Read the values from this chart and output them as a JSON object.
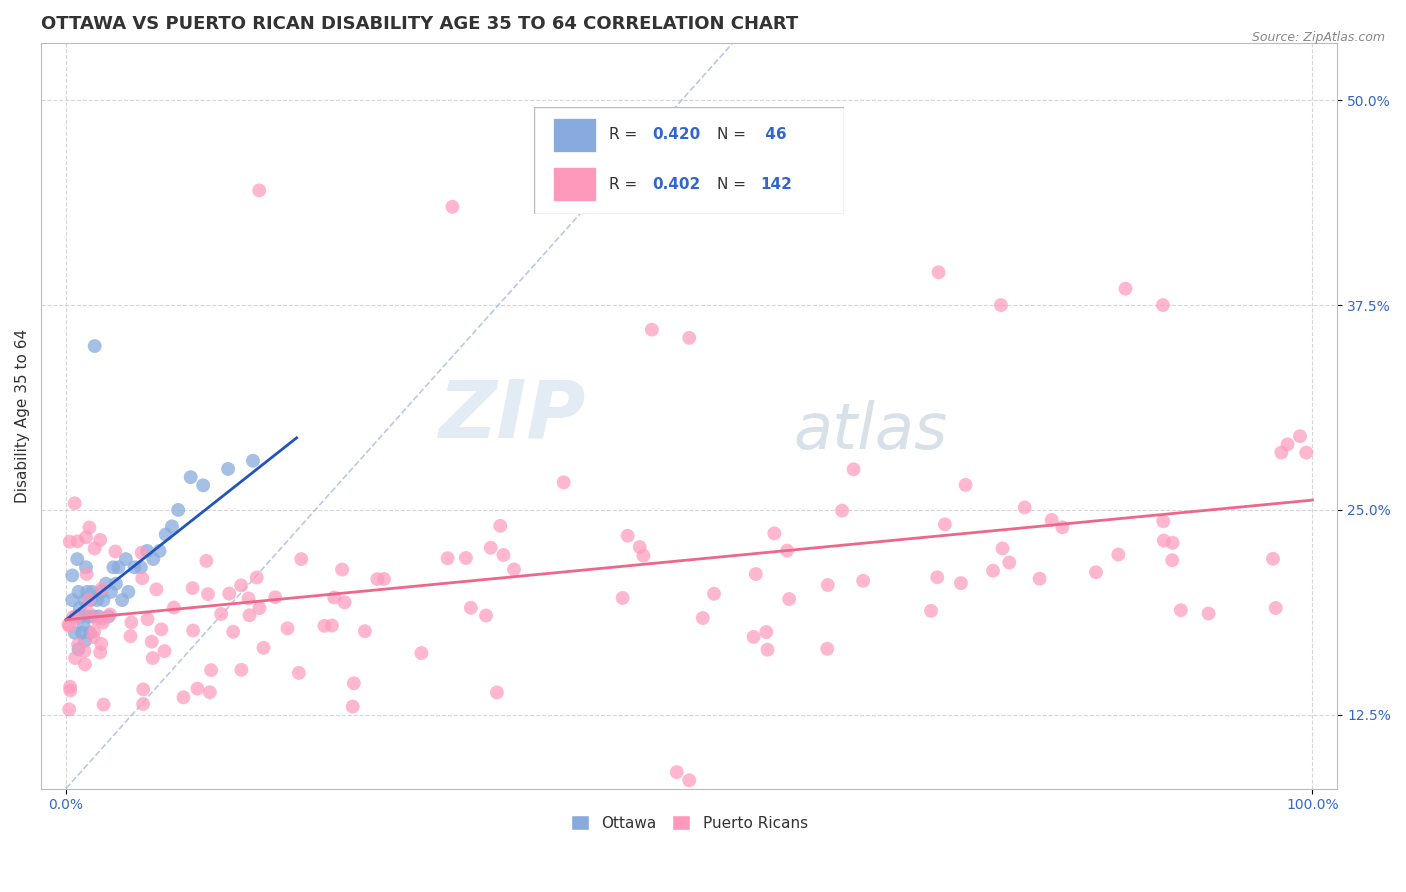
{
  "title": "OTTAWA VS PUERTO RICAN DISABILITY AGE 35 TO 64 CORRELATION CHART",
  "source": "Source: ZipAtlas.com",
  "ylabel": "Disability Age 35 to 64",
  "xlim": [
    -0.02,
    1.02
  ],
  "ylim": [
    0.08,
    0.535
  ],
  "x_ticks": [
    0.0,
    1.0
  ],
  "x_tick_labels": [
    "0.0%",
    "100.0%"
  ],
  "y_ticks": [
    0.125,
    0.25,
    0.375,
    0.5
  ],
  "y_tick_labels": [
    "12.5%",
    "25.0%",
    "37.5%",
    "50.0%"
  ],
  "ottawa_color": "#88AADD",
  "puerto_rican_color": "#FF99BB",
  "trend_blue": "#2255BB",
  "trend_pink": "#EE6688",
  "R_ottawa": 0.42,
  "N_ottawa": 46,
  "R_puerto": 0.402,
  "N_puerto": 142,
  "watermark_zip": "ZIP",
  "watermark_atlas": "atlas",
  "title_fontsize": 13,
  "axis_label_fontsize": 11,
  "tick_fontsize": 10,
  "dot_size": 100,
  "grid_color": "#CCCCCC",
  "dashed_line_color": "#AABBDD"
}
